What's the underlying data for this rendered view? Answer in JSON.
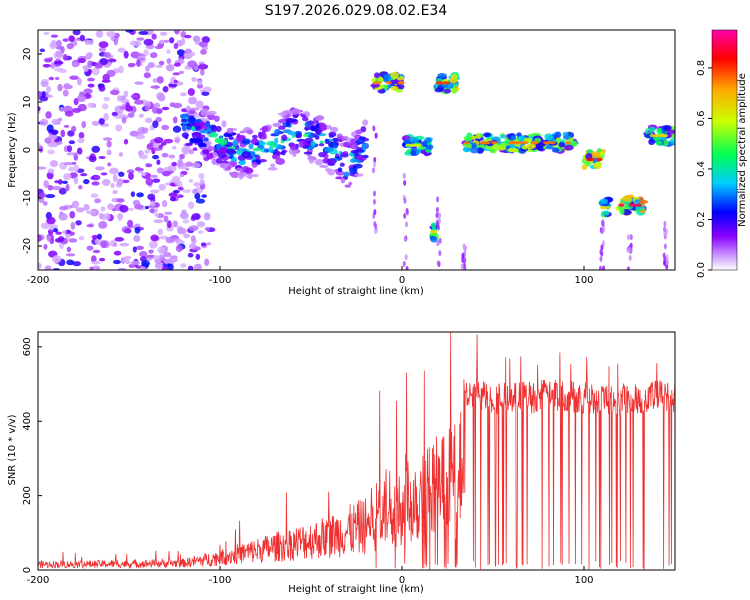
{
  "chart_data": [
    {
      "type": "heatmap",
      "title": "S197.2026.029.08.02.E34",
      "xlabel": "Height of straight line (km)",
      "ylabel": "Frequency (Hz)",
      "xlim": [
        -200,
        150
      ],
      "ylim": [
        -25,
        25
      ],
      "xticks": [
        -200,
        -100,
        0,
        100
      ],
      "yticks": [
        -20,
        -10,
        0,
        10,
        20
      ],
      "colorbar": {
        "label": "Normalized spectral amplitude",
        "range": [
          0,
          0.95
        ],
        "ticks": [
          0.0,
          0.2,
          0.4,
          0.6,
          0.8
        ],
        "tick_labels": [
          "0.0",
          "0.2",
          "0.4",
          "0.6",
          "0.8"
        ],
        "colors": [
          "#ffffff",
          "#8a00ff",
          "#0000ff",
          "#00ffff",
          "#00ff00",
          "#ffff00",
          "#ff7f00",
          "#ff0000",
          "#ff00aa"
        ]
      },
      "features": [
        {
          "x_from": -200,
          "x_to": -120,
          "freq_from": -25,
          "freq_to": 25,
          "amplitude": 0.15,
          "kind": "scatter-noise"
        },
        {
          "x_from": -120,
          "x_to": -20,
          "freq_center_points": [
            [
              -120,
              5
            ],
            [
              -105,
              3
            ],
            [
              -90,
              -1
            ],
            [
              -75,
              0
            ],
            [
              -60,
              4
            ],
            [
              -45,
              2
            ],
            [
              -30,
              -3
            ],
            [
              -20,
              1
            ]
          ],
          "amplitude": 0.4,
          "kind": "track"
        },
        {
          "x_from": -15,
          "x_to": 0,
          "freq_center": 14,
          "amplitude": 0.6
        },
        {
          "x_from": 2,
          "x_to": 15,
          "freq_center": 1,
          "amplitude": 0.45
        },
        {
          "x_from": 18,
          "x_to": 30,
          "freq_center": 14,
          "amplitude": 0.65
        },
        {
          "x_from": 17,
          "x_to": 18,
          "freq_center": -17,
          "amplitude": 0.5
        },
        {
          "x_from": 35,
          "x_to": 95,
          "freq_center": 1.5,
          "amplitude": 0.6
        },
        {
          "x_from": 100,
          "x_to": 110,
          "freq_center": -2,
          "amplitude": 0.7
        },
        {
          "x_from": 110,
          "x_to": 114,
          "freq_center": -12,
          "amplitude": 0.5
        },
        {
          "x_from": 120,
          "x_to": 133,
          "freq_center": -11.5,
          "amplitude": 0.75
        },
        {
          "x_from": 135,
          "x_to": 150,
          "freq_center": 3,
          "amplitude": 0.5
        }
      ]
    },
    {
      "type": "line",
      "xlabel": "Height of straight line (km)",
      "ylabel": "SNR (10 * v/v)",
      "xlim": [
        -200,
        150
      ],
      "ylim": [
        0,
        640
      ],
      "xticks": [
        -200,
        -100,
        0,
        100
      ],
      "yticks": [
        0,
        200,
        400,
        600
      ],
      "color": "#ee3030",
      "series": [
        {
          "name": "SNR",
          "x": [
            -200,
            -150,
            -120,
            -100,
            -80,
            -60,
            -40,
            -20,
            -10,
            0,
            10,
            20,
            30,
            35,
            40,
            60,
            80,
            100,
            120,
            150
          ],
          "y": [
            20,
            22,
            25,
            45,
            70,
            95,
            120,
            160,
            220,
            250,
            270,
            300,
            320,
            460,
            470,
            460,
            470,
            465,
            460,
            470
          ]
        }
      ]
    }
  ]
}
